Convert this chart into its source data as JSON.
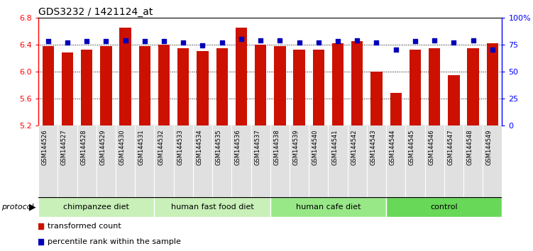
{
  "title": "GDS3232 / 1421124_at",
  "samples": [
    "GSM144526",
    "GSM144527",
    "GSM144528",
    "GSM144529",
    "GSM144530",
    "GSM144531",
    "GSM144532",
    "GSM144533",
    "GSM144534",
    "GSM144535",
    "GSM144536",
    "GSM144537",
    "GSM144538",
    "GSM144539",
    "GSM144540",
    "GSM144541",
    "GSM144542",
    "GSM144543",
    "GSM144544",
    "GSM144545",
    "GSM144546",
    "GSM144547",
    "GSM144548",
    "GSM144549"
  ],
  "transformed_count": [
    6.38,
    6.28,
    6.32,
    6.38,
    6.65,
    6.38,
    6.4,
    6.35,
    6.3,
    6.35,
    6.65,
    6.4,
    6.38,
    6.32,
    6.32,
    6.42,
    6.45,
    6.0,
    5.68,
    6.32,
    6.35,
    5.95,
    6.35,
    6.42
  ],
  "percentile_rank": [
    78,
    77,
    78,
    78,
    79,
    78,
    78,
    77,
    74,
    77,
    80,
    79,
    79,
    77,
    77,
    78,
    79,
    77,
    70,
    78,
    79,
    77,
    79,
    70
  ],
  "groups": [
    {
      "label": "chimpanzee diet",
      "start": 0,
      "end": 6,
      "color": "#c8f0b8"
    },
    {
      "label": "human fast food diet",
      "start": 6,
      "end": 12,
      "color": "#c8f0b8"
    },
    {
      "label": "human cafe diet",
      "start": 12,
      "end": 18,
      "color": "#98e888"
    },
    {
      "label": "control",
      "start": 18,
      "end": 24,
      "color": "#68d858"
    }
  ],
  "ylim_left": [
    5.2,
    6.8
  ],
  "ylim_right": [
    0,
    100
  ],
  "bar_color": "#cc1100",
  "dot_color": "#0000bb",
  "title_fontsize": 10,
  "tick_fontsize": 8
}
